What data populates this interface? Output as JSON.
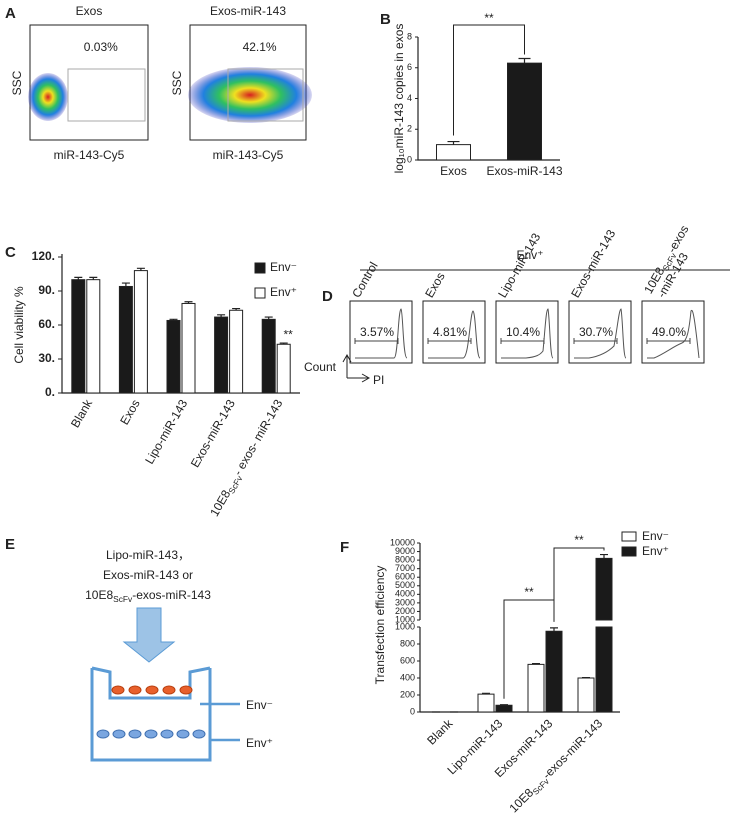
{
  "panels": {
    "A": {
      "letter": "A",
      "plots": [
        {
          "title": "Exos",
          "gate": "0.03%",
          "ylabel": "SSC",
          "xlabel": "miR-143-Cy5"
        },
        {
          "title": "Exos-miR-143",
          "gate": "42.1%",
          "ylabel": "SSC",
          "xlabel": "miR-143-Cy5"
        }
      ]
    },
    "D": {
      "letter": "D",
      "header": "Env⁺",
      "ylabel": "Count",
      "xlabel": "PI",
      "plots": [
        {
          "label": [
            "Control"
          ],
          "gate": "3.57%"
        },
        {
          "label": [
            "Exos"
          ],
          "gate": "4.81%"
        },
        {
          "label": [
            "Lipo-miR-143"
          ],
          "gate": "10.4%"
        },
        {
          "label": [
            "Exos-miR-143"
          ],
          "gate": "30.7%"
        },
        {
          "label": [
            "10E8ScFv-exos",
            "-miR-143"
          ],
          "gate": "49.0%"
        }
      ]
    },
    "E": {
      "letter": "E",
      "treatments": [
        "Lipo-miR-143，",
        "Exos-miR-143 or",
        "10E8ScFv-exos-miR-143"
      ],
      "upper": "Env⁻",
      "lower": "Env⁺"
    }
  },
  "chart_data": [
    {
      "type": "bar",
      "letter": "B",
      "ylabel": "log₁₀miR-143 copies in exos",
      "categories": [
        "Exos",
        "Exos-miR-143"
      ],
      "values": [
        1.0,
        6.3
      ],
      "errors": [
        0.2,
        0.3
      ],
      "colors": [
        "#ffffff",
        "#1a1a1a"
      ],
      "ylim": [
        0,
        8
      ],
      "yticks": [
        0,
        2,
        4,
        6,
        8
      ],
      "annotation": "**"
    },
    {
      "type": "grouped_bar",
      "letter": "C",
      "ylabel": "Cell viability %",
      "categories": [
        "Blank",
        "Exos",
        "Lipo-miR-143",
        "Exos-miR-143",
        "10E8ScFv- exos- miR-143"
      ],
      "series": [
        {
          "name": "Env⁻",
          "color": "#1a1a1a",
          "values": [
            100,
            94,
            64,
            67,
            65
          ],
          "errors": [
            2,
            3,
            1,
            2,
            2
          ]
        },
        {
          "name": "Env⁺",
          "color": "#ffffff",
          "values": [
            100,
            108,
            79,
            73,
            43
          ],
          "errors": [
            2,
            2,
            1.5,
            1.5,
            1
          ]
        }
      ],
      "ylim": [
        0,
        120
      ],
      "yticks": [
        {
          "value": 0,
          "label": "0."
        },
        {
          "value": 30,
          "label": "30."
        },
        {
          "value": 60,
          "label": "60."
        },
        {
          "value": 90,
          "label": "90."
        },
        {
          "value": 120,
          "label": "120."
        }
      ],
      "annotation": "**"
    },
    {
      "type": "broken_bar",
      "letter": "F",
      "ylabel": "Transfection efficiency",
      "categories": [
        "Blank",
        "Lipo-miR-143",
        "Exos-miR-143",
        "10E8ScFv-exos-miR-143"
      ],
      "series": [
        {
          "name": "Env⁻",
          "color": "#ffffff",
          "values": [
            0,
            210,
            560,
            400
          ],
          "errors": [
            0,
            10,
            10,
            5
          ]
        },
        {
          "name": "Env⁺",
          "color": "#1a1a1a",
          "values": [
            0,
            80,
            950,
            8200
          ],
          "errors": [
            0,
            5,
            40,
            450
          ]
        }
      ],
      "segments": [
        {
          "ylim": [
            0,
            1000
          ],
          "yticks": [
            0,
            200,
            400,
            600,
            800,
            1000
          ]
        },
        {
          "ylim": [
            1000,
            10000
          ],
          "yticks": [
            1000,
            2000,
            3000,
            4000,
            5000,
            6000,
            7000,
            8000,
            9000,
            10000
          ]
        }
      ],
      "annotations": [
        "**",
        "**"
      ]
    }
  ]
}
